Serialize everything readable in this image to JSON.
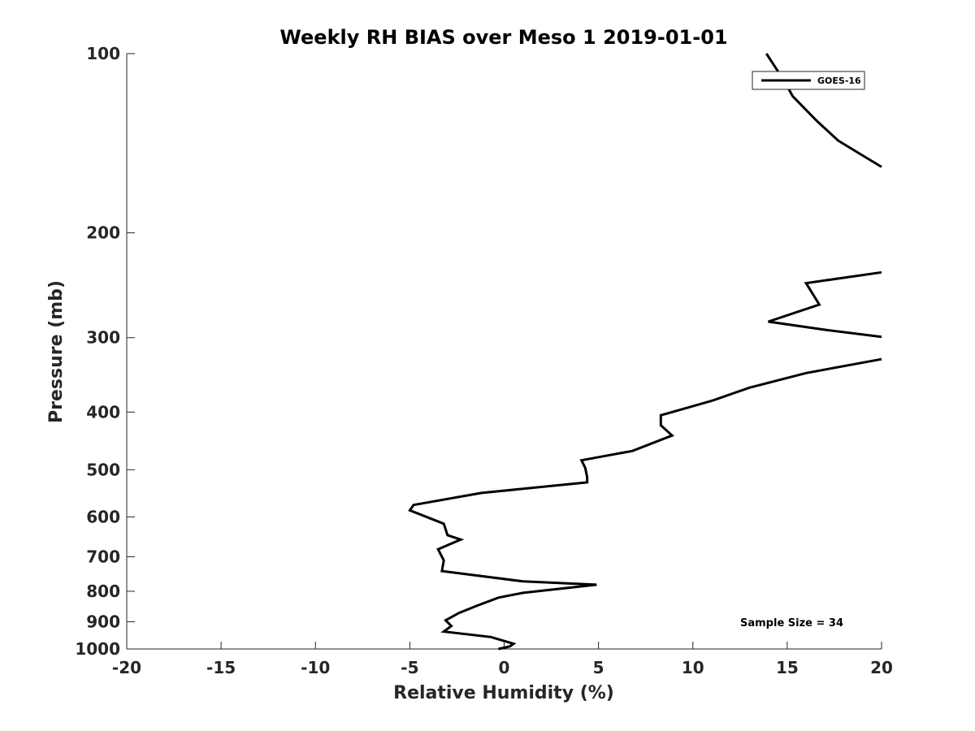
{
  "chart_data": {
    "type": "line",
    "title": "Weekly RH BIAS over Meso 1 2019-01-01",
    "xlabel": "Relative Humidity (%)",
    "ylabel": "Pressure (mb)",
    "xlim": [
      -20,
      20
    ],
    "ylim": [
      100,
      1000
    ],
    "yscale": "log",
    "yreversed": true,
    "xticks": [
      -20,
      -15,
      -10,
      -5,
      0,
      5,
      10,
      15,
      20
    ],
    "xtick_labels": [
      "-20",
      "-15",
      "-10",
      "-5",
      "0",
      "5",
      "10",
      "15",
      "20"
    ],
    "yticks": [
      100,
      200,
      300,
      400,
      500,
      600,
      700,
      800,
      900,
      1000
    ],
    "ytick_labels": [
      "100",
      "200",
      "300",
      "400",
      "500",
      "600",
      "700",
      "800",
      "900",
      "1000"
    ],
    "grid": false,
    "legend_position": "top-right",
    "annotation": "Sample Size = 34",
    "line_color": "#000000",
    "series": [
      {
        "name": "GOES-16",
        "segments": [
          [
            [
              13.9,
              100
            ],
            [
              14.5,
              107
            ],
            [
              15.1,
              115
            ],
            [
              15.3,
              118
            ],
            [
              16.6,
              130
            ],
            [
              17.7,
              140
            ],
            [
              18.8,
              147
            ],
            [
              20.0,
              155
            ]
          ],
          [
            [
              20.0,
              233
            ],
            [
              16.0,
              243
            ],
            [
              16.7,
              264
            ],
            [
              14.0,
              282
            ],
            [
              17.0,
              291
            ],
            [
              20.0,
              299
            ]
          ],
          [
            [
              20.0,
              326
            ],
            [
              16.0,
              344
            ],
            [
              13.0,
              364
            ],
            [
              11.0,
              383
            ],
            [
              8.3,
              405
            ],
            [
              8.3,
              421
            ],
            [
              8.9,
              438
            ],
            [
              6.8,
              465
            ],
            [
              4.1,
              482
            ],
            [
              4.3,
              497
            ],
            [
              4.4,
              515
            ],
            [
              4.4,
              525
            ],
            [
              -1.2,
              547
            ],
            [
              -4.8,
              573
            ],
            [
              -5.0,
              585
            ],
            [
              -3.2,
              616
            ],
            [
              -3.0,
              644
            ],
            [
              -2.3,
              655
            ],
            [
              -3.5,
              680
            ],
            [
              -3.2,
              710
            ],
            [
              -3.3,
              740
            ],
            [
              1.0,
              770
            ],
            [
              4.9,
              780
            ],
            [
              1.0,
              805
            ],
            [
              -0.3,
              820
            ],
            [
              -1.4,
              845
            ],
            [
              -2.4,
              870
            ],
            [
              -3.1,
              895
            ],
            [
              -2.8,
              915
            ],
            [
              -3.2,
              935
            ],
            [
              -0.7,
              955
            ],
            [
              0.5,
              980
            ],
            [
              0.3,
              990
            ],
            [
              -0.3,
              1000
            ]
          ]
        ]
      }
    ]
  }
}
